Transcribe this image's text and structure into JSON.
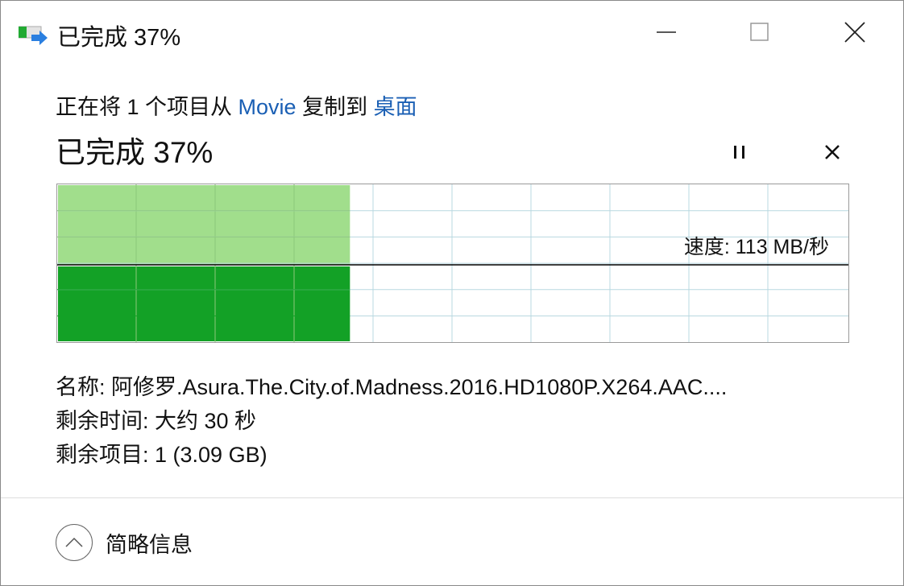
{
  "window": {
    "title": "已完成 37%",
    "icon": "copy-progress-icon",
    "controls": [
      "minimize-icon",
      "maximize-icon",
      "close-icon"
    ]
  },
  "operation": {
    "prefix": "正在将 1 个项目从 ",
    "source": "Movie",
    "middle": " 复制到 ",
    "destination": "桌面"
  },
  "progress": {
    "label": "已完成 37%",
    "percent": 37,
    "pause_icon": "pause-icon",
    "cancel_icon": "cancel-icon"
  },
  "graph": {
    "speed_label": "速度: 113 MB/秒",
    "colors": {
      "done_fill": "#13a126",
      "done_headroom": "#a1de8c",
      "grid": "#b8d8e0",
      "line": "#000000"
    }
  },
  "details": {
    "name": "名称: 阿修罗.Asura.The.City.of.Madness.2016.HD1080P.X264.AAC....",
    "time_remaining": "剩余时间: 大约 30 秒",
    "items_remaining": "剩余项目: 1 (3.09 GB)"
  },
  "footer": {
    "toggle_label": "简略信息",
    "toggle_icon": "chevron-up-icon"
  }
}
